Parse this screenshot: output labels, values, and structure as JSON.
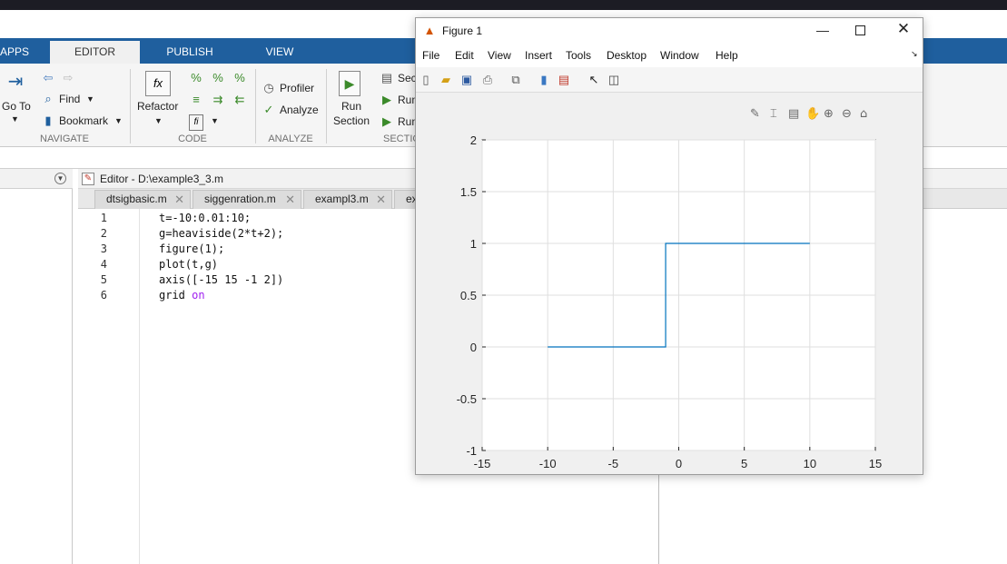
{
  "ribbon": {
    "tabs": [
      "APPS",
      "EDITOR",
      "PUBLISH",
      "VIEW"
    ],
    "navigate": {
      "goto": "Go To",
      "find": "Find",
      "bookmark": "Bookmark",
      "label": "NAVIGATE"
    },
    "code": {
      "refactor": "Refactor",
      "label": "CODE"
    },
    "analyze": {
      "profiler": "Profiler",
      "analyze": "Analyze",
      "label": "ANALYZE"
    },
    "section": {
      "run_section_1": "Run",
      "run_section_2": "Section",
      "sec": "Sec",
      "run1": "Run",
      "run2": "Run",
      "label": "SECTIO"
    }
  },
  "editor": {
    "title": "Editor - D:\\example3_3.m",
    "tabs": [
      "dtsigbasic.m",
      "siggenration.m",
      "exampl3.m",
      "ex"
    ],
    "lines": [
      {
        "n": "1",
        "code": "t=-10:0.01:10;",
        "kw": ""
      },
      {
        "n": "2",
        "code": "g=heaviside(2*t+2);",
        "kw": ""
      },
      {
        "n": "3",
        "code": "figure(1);",
        "kw": ""
      },
      {
        "n": "4",
        "code": "plot(t,g)",
        "kw": ""
      },
      {
        "n": "5",
        "code": "axis([-15 15 -1 2])",
        "kw": ""
      },
      {
        "n": "6",
        "code": "grid ",
        "kw": "on"
      }
    ]
  },
  "figure": {
    "title": "Figure 1",
    "menu": [
      "File",
      "Edit",
      "View",
      "Insert",
      "Tools",
      "Desktop",
      "Window",
      "Help"
    ]
  },
  "chart_data": {
    "type": "line",
    "title": "",
    "xlabel": "",
    "ylabel": "",
    "xlim": [
      -15,
      15
    ],
    "ylim": [
      -1,
      2
    ],
    "xticks": [
      "-15",
      "-10",
      "-5",
      "0",
      "5",
      "10",
      "15"
    ],
    "yticks": [
      "-1",
      "-0.5",
      "0",
      "0.5",
      "1",
      "1.5",
      "2"
    ],
    "grid": true,
    "color": "#0072bd",
    "series": [
      {
        "x": [
          -10,
          -1,
          -1,
          10
        ],
        "y": [
          0,
          0,
          1,
          1
        ]
      }
    ]
  }
}
